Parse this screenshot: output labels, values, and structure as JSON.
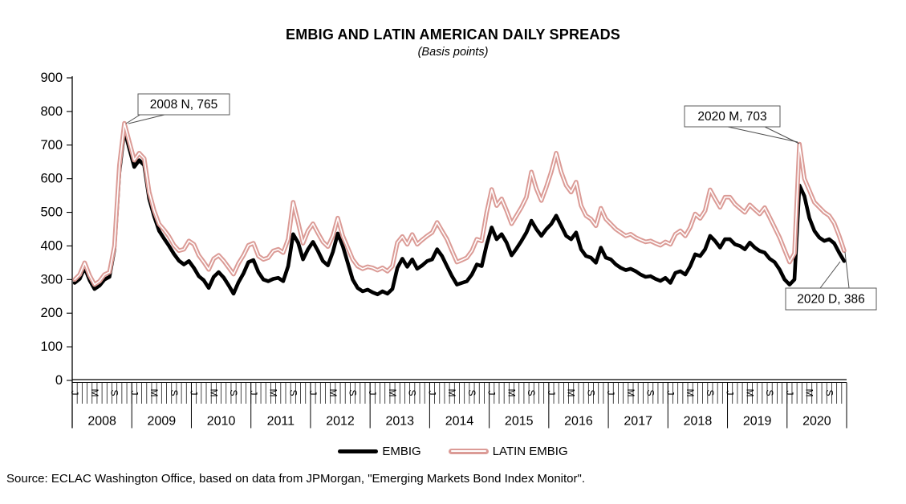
{
  "title": "EMBIG AND LATIN AMERICAN DAILY SPREADS",
  "subtitle": "(Basis points)",
  "source": "Source: ECLAC Washington Office, based on data from JPMorgan, \"Emerging Markets Bond Index Monitor\".",
  "legend": [
    {
      "label": "EMBIG",
      "color": "#000000",
      "style": "solid"
    },
    {
      "label": "LATIN EMBIG",
      "color": "#DB9B96",
      "style": "outlined-white-core"
    }
  ],
  "chart_data": {
    "type": "line",
    "title": "EMBIG AND LATIN AMERICAN DAILY SPREADS",
    "subtitle": "(Basis points)",
    "xlabel": "",
    "ylabel": "",
    "ylim": [
      0,
      900
    ],
    "yticks": [
      0,
      100,
      200,
      300,
      400,
      500,
      600,
      700,
      800,
      900
    ],
    "grid": false,
    "legend_position": "bottom",
    "x_start": "2008-01",
    "x_end": "2020-12",
    "points_per_year": 12,
    "years": [
      2008,
      2009,
      2010,
      2011,
      2012,
      2013,
      2014,
      2015,
      2016,
      2017,
      2018,
      2019,
      2020
    ],
    "month_letters": {
      "0": "J",
      "4": "M",
      "8": "S"
    },
    "series": [
      {
        "name": "EMBIG",
        "color": "#000000",
        "values": [
          290,
          302,
          335,
          298,
          272,
          282,
          300,
          308,
          390,
          620,
          745,
          690,
          635,
          655,
          640,
          540,
          488,
          445,
          422,
          400,
          376,
          356,
          345,
          355,
          335,
          310,
          298,
          275,
          308,
          322,
          306,
          283,
          258,
          292,
          318,
          352,
          358,
          322,
          300,
          295,
          302,
          305,
          295,
          340,
          435,
          410,
          360,
          390,
          412,
          385,
          355,
          342,
          382,
          437,
          400,
          350,
          300,
          275,
          265,
          270,
          262,
          256,
          265,
          258,
          272,
          335,
          362,
          338,
          360,
          332,
          342,
          355,
          360,
          390,
          370,
          340,
          310,
          285,
          290,
          295,
          315,
          345,
          340,
          404,
          455,
          420,
          435,
          410,
          372,
          392,
          415,
          440,
          475,
          450,
          430,
          450,
          465,
          490,
          460,
          430,
          420,
          440,
          390,
          370,
          365,
          350,
          395,
          365,
          360,
          345,
          335,
          328,
          332,
          325,
          315,
          308,
          310,
          302,
          296,
          305,
          290,
          320,
          325,
          315,
          340,
          375,
          370,
          390,
          430,
          415,
          395,
          420,
          420,
          405,
          400,
          390,
          410,
          395,
          385,
          380,
          362,
          352,
          330,
          300,
          285,
          300,
          580,
          548,
          483,
          445,
          425,
          415,
          420,
          408,
          380,
          355
        ]
      },
      {
        "name": "LATIN EMBIG",
        "color": "#DB9B96",
        "core_color": "#FFFFFF",
        "values": [
          300,
          315,
          350,
          312,
          285,
          295,
          315,
          322,
          400,
          640,
          765,
          710,
          655,
          676,
          660,
          560,
          505,
          465,
          448,
          428,
          402,
          386,
          390,
          415,
          405,
          372,
          352,
          330,
          362,
          372,
          356,
          336,
          316,
          348,
          372,
          402,
          408,
          370,
          360,
          365,
          385,
          390,
          380,
          420,
          530,
          470,
          408,
          445,
          466,
          438,
          412,
          398,
          430,
          483,
          430,
          395,
          360,
          340,
          332,
          338,
          335,
          328,
          335,
          325,
          340,
          410,
          428,
          405,
          434,
          405,
          418,
          430,
          440,
          470,
          445,
          420,
          385,
          352,
          358,
          365,
          385,
          420,
          415,
          500,
          568,
          520,
          540,
          505,
          466,
          490,
          515,
          545,
          620,
          570,
          535,
          575,
          620,
          676,
          620,
          580,
          560,
          590,
          520,
          490,
          480,
          460,
          512,
          480,
          465,
          450,
          440,
          430,
          435,
          425,
          418,
          412,
          415,
          408,
          402,
          412,
          405,
          435,
          445,
          430,
          455,
          495,
          482,
          505,
          567,
          540,
          515,
          545,
          545,
          525,
          512,
          500,
          522,
          508,
          495,
          514,
          485,
          455,
          425,
          388,
          352,
          378,
          703,
          600,
          565,
          530,
          515,
          500,
          490,
          468,
          430,
          386
        ]
      }
    ],
    "annotations": [
      {
        "label": "2008 N, 765",
        "series": "LATIN EMBIG",
        "point": "2008-11",
        "value": 765
      },
      {
        "label": "2020 M, 703",
        "series": "LATIN EMBIG",
        "point": "2020-03",
        "value": 703
      },
      {
        "label": "2020 D, 386",
        "series": "LATIN EMBIG",
        "point": "2020-12",
        "value": 386
      }
    ]
  }
}
